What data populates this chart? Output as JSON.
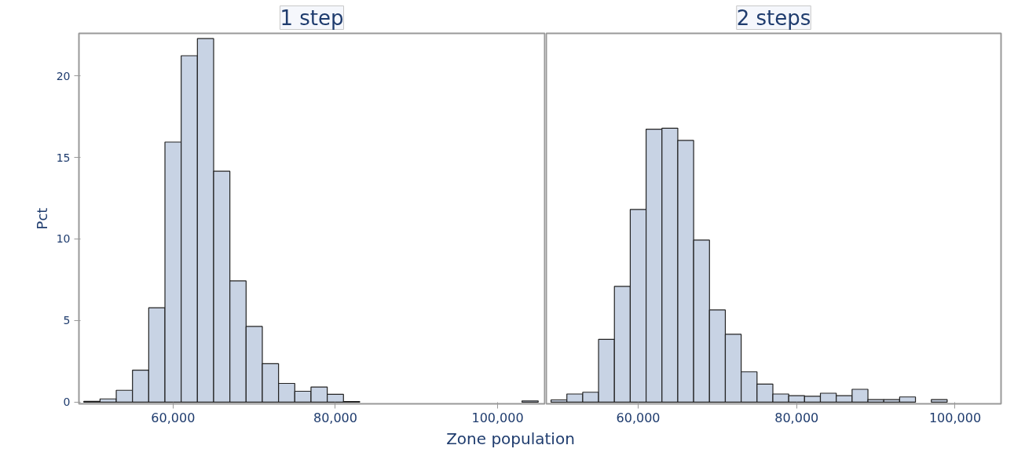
{
  "chart_data": [
    {
      "type": "histogram",
      "title": "1 step",
      "ylabel": "Pct",
      "xlabel": "Zone population",
      "color": "#c8d3e4",
      "bins": [
        49000,
        51000,
        53000,
        55000,
        57000,
        59000,
        61000,
        63000,
        65000,
        67000,
        69000,
        71000,
        73000,
        75000,
        77000,
        79000,
        81000,
        83000,
        85000,
        87000,
        89000,
        91000,
        93000,
        95000,
        97000,
        99000,
        101000,
        103000,
        105000
      ],
      "values": [
        0.05,
        0.2,
        0.73,
        1.96,
        5.79,
        15.94,
        21.23,
        22.28,
        14.15,
        7.43,
        4.64,
        2.36,
        1.15,
        0.67,
        0.93,
        0.48,
        0.04,
        null,
        null,
        null,
        null,
        null,
        null,
        null,
        null,
        null,
        null,
        0.08
      ],
      "xlim": [
        48400,
        105800
      ],
      "ylim": [
        -0.1,
        22.6
      ],
      "xticks": [
        {
          "value": 60000,
          "label": "60,000"
        },
        {
          "value": 80000,
          "label": "80,000"
        },
        {
          "value": 100000,
          "label": "100,000"
        }
      ],
      "yticks": [
        0,
        5,
        10,
        15,
        20
      ],
      "grid": false
    },
    {
      "type": "histogram",
      "title": "2 steps",
      "color": "#c8d3e4",
      "bins": [
        49000,
        51000,
        53000,
        55000,
        57000,
        59000,
        61000,
        63000,
        65000,
        67000,
        69000,
        71000,
        73000,
        75000,
        77000,
        79000,
        81000,
        83000,
        85000,
        87000,
        89000,
        91000,
        93000,
        95000,
        97000,
        99000
      ],
      "values": [
        0.14,
        0.5,
        0.61,
        3.85,
        7.1,
        11.81,
        16.73,
        16.79,
        16.04,
        9.93,
        5.65,
        4.16,
        1.86,
        1.11,
        0.5,
        0.4,
        0.36,
        0.55,
        0.4,
        0.79,
        0.16,
        0.16,
        0.32,
        null,
        0.16
      ],
      "xlim": [
        48400,
        105800
      ],
      "ylim": [
        -0.1,
        22.6
      ],
      "xticks": [
        {
          "value": 60000,
          "label": "60,000"
        },
        {
          "value": 80000,
          "label": "80,000"
        },
        {
          "value": 100000,
          "label": "100,000"
        }
      ],
      "yticks": [
        0,
        5,
        10,
        15,
        20
      ],
      "grid": false,
      "tick_labels": "x"
    }
  ]
}
